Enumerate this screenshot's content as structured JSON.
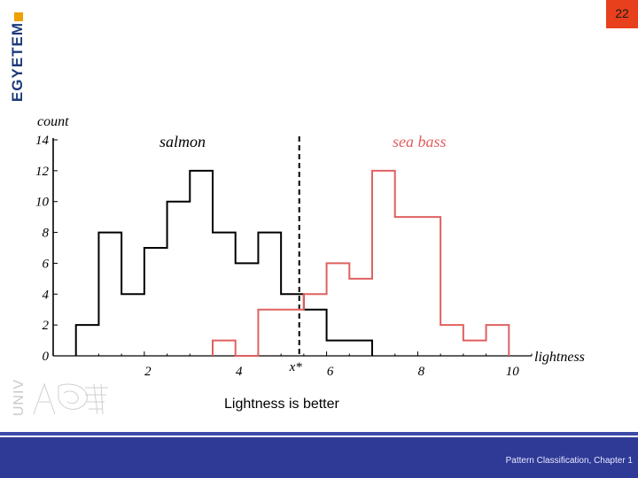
{
  "page_number": "22",
  "logo": {
    "text": "EGYETEM",
    "accent_color": "#f0a000"
  },
  "univ_label": "UNIV",
  "caption": "Lightness is better",
  "footer": {
    "text": "Pattern Classification, Chapter 1",
    "bar_color": "#2f3a96"
  },
  "chart_data": {
    "type": "histogram",
    "title": "",
    "xlabel": "lightness",
    "ylabel": "count",
    "xlim": [
      0,
      10.5
    ],
    "ylim": [
      0,
      14
    ],
    "x_ticks": [
      2,
      4,
      6,
      8,
      10
    ],
    "y_ticks": [
      0,
      2,
      4,
      6,
      8,
      10,
      12,
      14
    ],
    "threshold": {
      "label": "x*",
      "x": 5.4
    },
    "grid": false,
    "series": [
      {
        "name": "salmon",
        "color": "#000000",
        "bin_edges": [
          0.5,
          1.0,
          1.5,
          2.0,
          2.5,
          3.0,
          3.5,
          4.0,
          4.5,
          5.0,
          5.5,
          6.0,
          6.5,
          7.0
        ],
        "counts": [
          2,
          8,
          4,
          7,
          10,
          12,
          8,
          6,
          8,
          4,
          3,
          1,
          1
        ]
      },
      {
        "name": "sea bass",
        "color": "#e06060",
        "bin_edges": [
          3.5,
          4.0,
          4.5,
          5.0,
          5.5,
          6.0,
          6.5,
          7.0,
          7.5,
          8.0,
          8.5,
          9.0,
          9.5,
          10.0
        ],
        "counts": [
          1,
          0,
          3,
          3,
          4,
          6,
          5,
          12,
          9,
          9,
          2,
          1,
          2
        ]
      }
    ]
  }
}
